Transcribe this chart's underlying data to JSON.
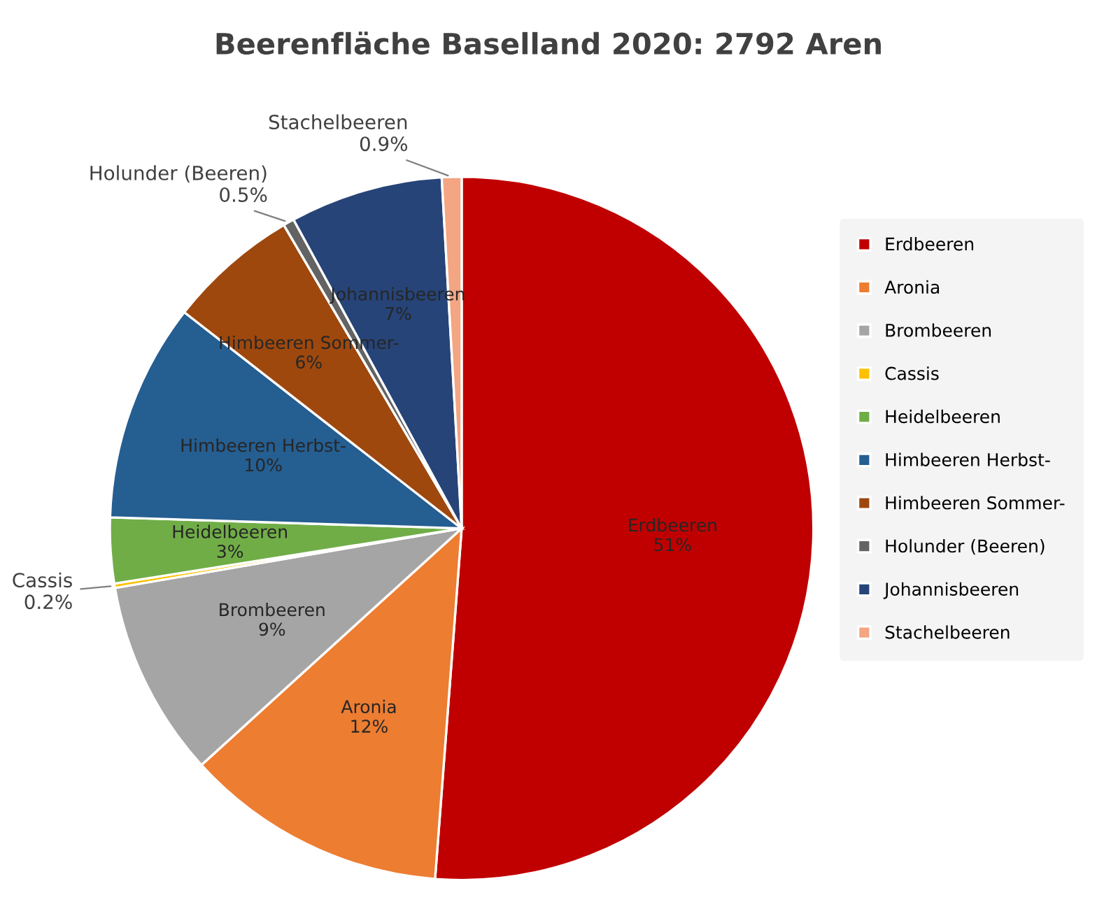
{
  "chart_data": {
    "type": "pie",
    "title": "Beerenfläche Baselland 2020: 2792 Aren",
    "categories": [
      "Erdbeeren",
      "Aronia",
      "Brombeeren",
      "Cassis",
      "Heidelbeeren",
      "Himbeeren Herbst-",
      "Himbeeren Sommer-",
      "Holunder (Beeren)",
      "Johannisbeeren",
      "Stachelbeeren"
    ],
    "values": [
      51,
      12,
      9,
      0.2,
      3,
      10,
      6,
      0.5,
      7,
      0.9
    ],
    "value_labels": [
      "51%",
      "12%",
      "9%",
      "0.2%",
      "3%",
      "10%",
      "6%",
      "0.5%",
      "7%",
      "0.9%"
    ],
    "colors": [
      "#c00000",
      "#ed7d31",
      "#a5a5a5",
      "#ffc000",
      "#70ad47",
      "#255e91",
      "#9e480e",
      "#636363",
      "#264478",
      "#f4a582"
    ],
    "legend": "right"
  }
}
